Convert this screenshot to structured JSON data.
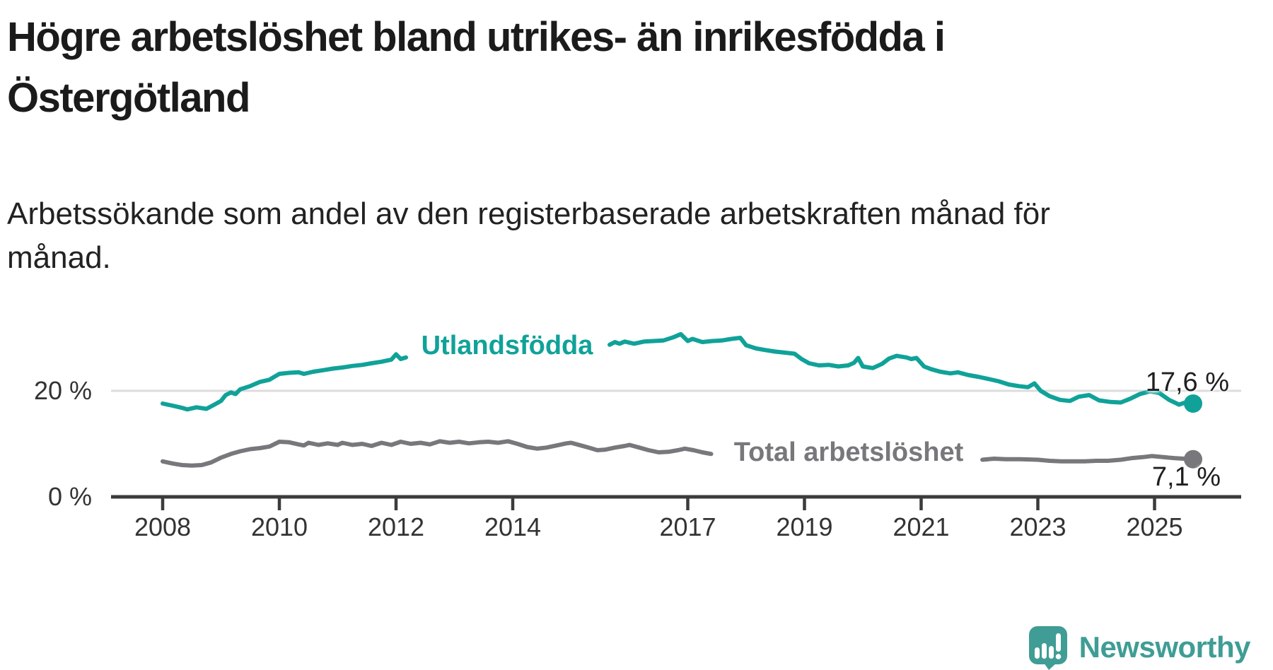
{
  "title": {
    "lines": [
      "Högre arbetslöshet bland utrikes- än inrikesfödda i",
      "Östergötland"
    ]
  },
  "subtitle": {
    "lines": [
      "Arbetssökande som andel av den registerbaserade arbetskraften månad för",
      "månad."
    ]
  },
  "logo": {
    "text": "Newsworthy"
  },
  "colors": {
    "teal": "#10a299",
    "gray": "#77777c",
    "axis": "#3b3b3b",
    "gridline": "#dcdcdc",
    "logo_teal": "#3f9d95"
  },
  "chart_data": {
    "type": "line",
    "title": "Högre arbetslöshet bland utrikes- än inrikesfödda i Östergötland",
    "subtitle": "Arbetssökande som andel av den registerbaserade arbetskraften månad för månad.",
    "unit": "percent of registered labour force",
    "x_axis": {
      "ticks": [
        2008,
        2010,
        2012,
        2014,
        2017,
        2019,
        2021,
        2023,
        2025
      ],
      "range_years": [
        2007.1,
        2026.5
      ]
    },
    "y_axis": {
      "ticks": [
        {
          "value": 0,
          "label": "0 %"
        },
        {
          "value": 20,
          "label": "20 %"
        }
      ],
      "range": [
        0,
        33
      ],
      "gridlines": [
        20
      ]
    },
    "legend_position": "inline-on-line",
    "series": [
      {
        "name": "Utlandsfödda",
        "color": "#10a299",
        "end_label": "17,6 %",
        "end_value": 17.6,
        "label_gap_years": [
          2012.2,
          2015.62
        ],
        "segments": [
          [
            [
              2008.0,
              17.6
            ],
            [
              2008.17,
              17.2
            ],
            [
              2008.33,
              16.8
            ],
            [
              2008.42,
              16.5
            ],
            [
              2008.58,
              16.9
            ],
            [
              2008.75,
              16.6
            ],
            [
              2008.92,
              17.6
            ],
            [
              2009.0,
              18.1
            ],
            [
              2009.08,
              19.2
            ],
            [
              2009.17,
              19.7
            ],
            [
              2009.25,
              19.4
            ],
            [
              2009.33,
              20.3
            ],
            [
              2009.5,
              20.9
            ],
            [
              2009.67,
              21.7
            ],
            [
              2009.83,
              22.1
            ],
            [
              2009.92,
              22.7
            ],
            [
              2010.0,
              23.2
            ],
            [
              2010.17,
              23.4
            ],
            [
              2010.33,
              23.5
            ],
            [
              2010.42,
              23.2
            ],
            [
              2010.58,
              23.6
            ],
            [
              2010.75,
              23.9
            ],
            [
              2010.92,
              24.2
            ],
            [
              2011.08,
              24.4
            ],
            [
              2011.25,
              24.7
            ],
            [
              2011.42,
              24.9
            ],
            [
              2011.58,
              25.2
            ],
            [
              2011.75,
              25.5
            ],
            [
              2011.92,
              25.9
            ],
            [
              2012.0,
              26.9
            ],
            [
              2012.08,
              26.0
            ],
            [
              2012.17,
              26.3
            ]
          ],
          [
            [
              2015.66,
              28.7
            ],
            [
              2015.75,
              29.2
            ],
            [
              2015.83,
              28.9
            ],
            [
              2015.92,
              29.3
            ],
            [
              2016.08,
              28.9
            ],
            [
              2016.25,
              29.3
            ],
            [
              2016.42,
              29.4
            ],
            [
              2016.58,
              29.5
            ],
            [
              2016.75,
              30.1
            ],
            [
              2016.88,
              30.7
            ],
            [
              2017.0,
              29.4
            ],
            [
              2017.08,
              29.8
            ],
            [
              2017.25,
              29.2
            ],
            [
              2017.42,
              29.4
            ],
            [
              2017.58,
              29.5
            ],
            [
              2017.75,
              29.8
            ],
            [
              2017.9,
              30.0
            ],
            [
              2018.0,
              28.6
            ],
            [
              2018.17,
              28.0
            ],
            [
              2018.33,
              27.7
            ],
            [
              2018.5,
              27.4
            ],
            [
              2018.67,
              27.2
            ],
            [
              2018.83,
              27.0
            ],
            [
              2018.95,
              26.0
            ],
            [
              2019.08,
              25.2
            ],
            [
              2019.25,
              24.8
            ],
            [
              2019.42,
              24.9
            ],
            [
              2019.58,
              24.6
            ],
            [
              2019.75,
              24.8
            ],
            [
              2019.85,
              25.3
            ],
            [
              2019.92,
              26.2
            ],
            [
              2020.0,
              24.6
            ],
            [
              2020.17,
              24.3
            ],
            [
              2020.33,
              25.1
            ],
            [
              2020.45,
              26.1
            ],
            [
              2020.58,
              26.6
            ],
            [
              2020.75,
              26.3
            ],
            [
              2020.83,
              26.0
            ],
            [
              2020.92,
              26.2
            ],
            [
              2021.05,
              24.6
            ],
            [
              2021.17,
              24.1
            ],
            [
              2021.33,
              23.6
            ],
            [
              2021.5,
              23.3
            ],
            [
              2021.63,
              23.5
            ],
            [
              2021.8,
              23.0
            ],
            [
              2022.0,
              22.6
            ],
            [
              2022.17,
              22.2
            ],
            [
              2022.33,
              21.8
            ],
            [
              2022.5,
              21.2
            ],
            [
              2022.67,
              20.9
            ],
            [
              2022.83,
              20.7
            ],
            [
              2022.94,
              21.4
            ],
            [
              2023.05,
              20.0
            ],
            [
              2023.2,
              19.0
            ],
            [
              2023.38,
              18.3
            ],
            [
              2023.55,
              18.1
            ],
            [
              2023.7,
              18.9
            ],
            [
              2023.88,
              19.2
            ],
            [
              2024.05,
              18.2
            ],
            [
              2024.25,
              17.9
            ],
            [
              2024.42,
              17.8
            ],
            [
              2024.58,
              18.5
            ],
            [
              2024.75,
              19.4
            ],
            [
              2024.92,
              19.9
            ],
            [
              2025.08,
              19.6
            ],
            [
              2025.25,
              18.3
            ],
            [
              2025.42,
              17.4
            ],
            [
              2025.55,
              17.9
            ],
            [
              2025.66,
              17.6
            ]
          ]
        ]
      },
      {
        "name": "Total arbetslöshet",
        "color": "#77777c",
        "end_label": "7,1 %",
        "end_value": 7.1,
        "label_gap_years": [
          2017.45,
          2022.0
        ],
        "segments": [
          [
            [
              2008.0,
              6.7
            ],
            [
              2008.17,
              6.3
            ],
            [
              2008.33,
              6.0
            ],
            [
              2008.5,
              5.9
            ],
            [
              2008.67,
              6.0
            ],
            [
              2008.83,
              6.5
            ],
            [
              2009.0,
              7.4
            ],
            [
              2009.17,
              8.1
            ],
            [
              2009.33,
              8.6
            ],
            [
              2009.5,
              9.0
            ],
            [
              2009.67,
              9.2
            ],
            [
              2009.83,
              9.5
            ],
            [
              2010.0,
              10.4
            ],
            [
              2010.17,
              10.3
            ],
            [
              2010.33,
              9.9
            ],
            [
              2010.42,
              9.7
            ],
            [
              2010.5,
              10.2
            ],
            [
              2010.67,
              9.8
            ],
            [
              2010.83,
              10.1
            ],
            [
              2011.0,
              9.8
            ],
            [
              2011.08,
              10.2
            ],
            [
              2011.25,
              9.8
            ],
            [
              2011.42,
              10.0
            ],
            [
              2011.58,
              9.6
            ],
            [
              2011.75,
              10.2
            ],
            [
              2011.92,
              9.8
            ],
            [
              2012.08,
              10.4
            ],
            [
              2012.25,
              10.0
            ],
            [
              2012.42,
              10.2
            ],
            [
              2012.58,
              9.9
            ],
            [
              2012.75,
              10.5
            ],
            [
              2012.92,
              10.2
            ],
            [
              2013.08,
              10.4
            ],
            [
              2013.25,
              10.1
            ],
            [
              2013.42,
              10.3
            ],
            [
              2013.58,
              10.4
            ],
            [
              2013.75,
              10.2
            ],
            [
              2013.92,
              10.5
            ],
            [
              2014.08,
              10.0
            ],
            [
              2014.25,
              9.4
            ],
            [
              2014.42,
              9.1
            ],
            [
              2014.58,
              9.3
            ],
            [
              2014.75,
              9.7
            ],
            [
              2014.92,
              10.1
            ],
            [
              2015.0,
              10.2
            ],
            [
              2015.17,
              9.7
            ],
            [
              2015.33,
              9.2
            ],
            [
              2015.45,
              8.8
            ],
            [
              2015.58,
              8.9
            ],
            [
              2015.75,
              9.3
            ],
            [
              2015.92,
              9.6
            ],
            [
              2016.0,
              9.8
            ],
            [
              2016.17,
              9.3
            ],
            [
              2016.33,
              8.8
            ],
            [
              2016.5,
              8.4
            ],
            [
              2016.67,
              8.5
            ],
            [
              2016.83,
              8.8
            ],
            [
              2016.95,
              9.1
            ],
            [
              2017.1,
              8.8
            ],
            [
              2017.25,
              8.4
            ],
            [
              2017.4,
              8.1
            ]
          ],
          [
            [
              2022.05,
              7.0
            ],
            [
              2022.25,
              7.2
            ],
            [
              2022.45,
              7.1
            ],
            [
              2022.7,
              7.1
            ],
            [
              2023.0,
              7.0
            ],
            [
              2023.2,
              6.8
            ],
            [
              2023.4,
              6.7
            ],
            [
              2023.6,
              6.7
            ],
            [
              2023.8,
              6.7
            ],
            [
              2024.0,
              6.8
            ],
            [
              2024.2,
              6.8
            ],
            [
              2024.42,
              7.0
            ],
            [
              2024.6,
              7.3
            ],
            [
              2024.8,
              7.5
            ],
            [
              2024.95,
              7.7
            ],
            [
              2025.15,
              7.5
            ],
            [
              2025.35,
              7.3
            ],
            [
              2025.5,
              7.2
            ],
            [
              2025.66,
              7.1
            ]
          ]
        ]
      }
    ]
  }
}
